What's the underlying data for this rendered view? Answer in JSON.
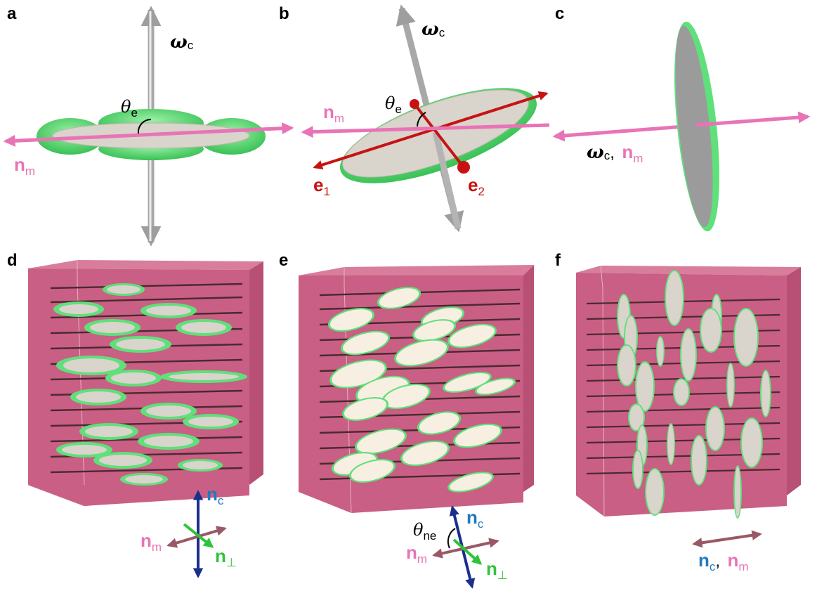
{
  "panels": {
    "a": "a",
    "b": "b",
    "c": "c",
    "d": "d",
    "e": "e",
    "f": "f"
  },
  "symbols": {
    "omega": "ω",
    "c_sub": "c",
    "n": "n",
    "m_sub": "m",
    "theta": "θ",
    "e_sub": "e",
    "ne_sub": "ne",
    "e": "e",
    "one": "1",
    "two": "2",
    "perp_sub": "⊥",
    "comma": ","
  },
  "colors": {
    "pink": "#e874b6",
    "green": "#5fe07a",
    "disk": "#d9d4cc",
    "red": "#d01414",
    "blue": "#1f7ac0",
    "navy": "#1a2f8c",
    "box": "#c9577d",
    "rod": "#4a2a30",
    "cream": "#f6efe2"
  }
}
